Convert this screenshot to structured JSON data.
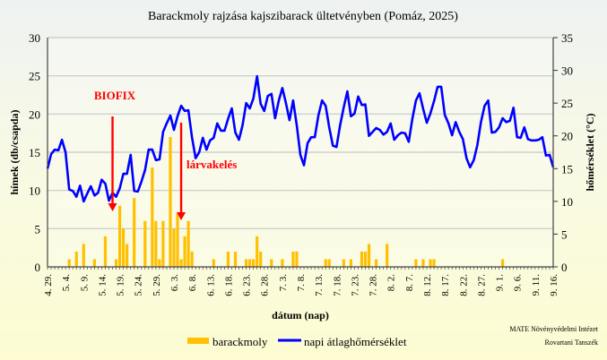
{
  "chart_data": {
    "type": "bar+line",
    "title": "Barackmoly rajzása kajszibarack ültetvényben (Pomáz, 2025)",
    "xlabel": "dátum (nap)",
    "ylabel_left": "hímek (db/csapda)",
    "ylabel_right": "hőmérséklet (°C)",
    "ylim_left": [
      0,
      30
    ],
    "yticks_left": [
      0,
      5,
      10,
      15,
      20,
      25,
      30
    ],
    "ylim_right": [
      0,
      35
    ],
    "yticks_right": [
      0,
      5,
      10,
      15,
      20,
      25,
      30,
      35
    ],
    "x_tick_labels": [
      "4. 29.",
      "5. 4.",
      "5. 9.",
      "5. 14.",
      "5. 19.",
      "5. 24.",
      "5. 29.",
      "6. 3.",
      "6. 8.",
      "6. 13.",
      "6. 18.",
      "6. 23.",
      "6. 28.",
      "7. 3.",
      "7. 8.",
      "7. 13.",
      "7. 18.",
      "7. 23.",
      "7. 28.",
      "8. 2.",
      "8. 7.",
      "8. 12.",
      "8. 17.",
      "8. 22.",
      "8. 27.",
      "9. 1.",
      "9. 6.",
      "9. 11.",
      "9. 16."
    ],
    "x_tick_every_days": 5,
    "grid": true,
    "legend_placement": "bottom",
    "series": [
      {
        "name": "barackmoly",
        "type": "bar",
        "axis": "left",
        "color": "#ffc000",
        "values": [
          0,
          0,
          0,
          0,
          0,
          0,
          1,
          0,
          2,
          0,
          3,
          0,
          0,
          1,
          0,
          0,
          4,
          0,
          0,
          1,
          8,
          5,
          3,
          0,
          9,
          0,
          0,
          6,
          0,
          13,
          6,
          1,
          6,
          0,
          17,
          5,
          7,
          1,
          4,
          6,
          2,
          0,
          0,
          0,
          0,
          0,
          1,
          0,
          0,
          0,
          2,
          0,
          2,
          0,
          0,
          1,
          1,
          1,
          4,
          2,
          0,
          0,
          1,
          0,
          0,
          1,
          0,
          0,
          2,
          2,
          0,
          0,
          0,
          0,
          0,
          0,
          0,
          1,
          1,
          0,
          0,
          0,
          1,
          0,
          1,
          0,
          0,
          2,
          2,
          3,
          0,
          1,
          0,
          0,
          3,
          0,
          0,
          0,
          0,
          0,
          0,
          0,
          1,
          0,
          1,
          0,
          1,
          1,
          0,
          0,
          0,
          0,
          0,
          0,
          0,
          0,
          0,
          0,
          0,
          0,
          0,
          0,
          0,
          0,
          0,
          0,
          1,
          0,
          0,
          0,
          0,
          0,
          0,
          0,
          0,
          0,
          0,
          0,
          0,
          0,
          0
        ]
      },
      {
        "name": "napi átlaghőmérséklet",
        "type": "line",
        "axis": "right",
        "color": "#0000ff",
        "values": [
          15.0,
          17.2,
          17.9,
          17.8,
          19.4,
          17.5,
          11.8,
          11.6,
          10.7,
          12.4,
          10.0,
          11.2,
          12.3,
          10.9,
          11.3,
          13.3,
          12.7,
          10.1,
          11.3,
          10.7,
          12.0,
          14.2,
          14.2,
          17.1,
          11.6,
          11.5,
          13.0,
          14.8,
          17.9,
          17.9,
          16.3,
          16.4,
          20.6,
          21.9,
          23.1,
          20.9,
          23.0,
          24.6,
          23.8,
          23.9,
          19.8,
          16.6,
          17.5,
          19.7,
          17.9,
          19.3,
          19.7,
          21.9,
          20.8,
          20.8,
          22.6,
          24.2,
          20.5,
          19.4,
          21.6,
          25.0,
          24.2,
          25.7,
          29.1,
          24.9,
          23.8,
          26.1,
          26.4,
          22.7,
          25.3,
          27.3,
          25.0,
          22.4,
          25.4,
          21.6,
          17.1,
          15.5,
          18.9,
          19.8,
          19.8,
          23.1,
          25.4,
          24.6,
          21.3,
          18.5,
          18.3,
          21.6,
          24.3,
          26.8,
          23.0,
          23.4,
          26.0,
          24.7,
          24.8,
          20.0,
          20.6,
          21.2,
          20.9,
          20.2,
          20.6,
          21.9,
          19.4,
          20.1,
          20.5,
          20.4,
          19.1,
          22.6,
          25.4,
          26.5,
          24.1,
          22.0,
          23.4,
          25.3,
          27.5,
          27.5,
          23.2,
          21.9,
          20.1,
          22.1,
          20.6,
          19.5,
          16.6,
          15.2,
          16.3,
          18.6,
          22.1,
          24.6,
          25.4,
          20.5,
          20.6,
          21.3,
          22.7,
          22.1,
          22.3,
          24.3,
          19.8,
          19.7,
          21.3,
          19.5,
          19.3,
          19.3,
          19.4,
          19.8,
          17.0,
          17.1,
          15.2
        ]
      }
    ],
    "annotations": [
      {
        "text": "BIOFIX",
        "day_index": 18,
        "color": "#ff0000"
      },
      {
        "text": "lárvakelés",
        "day_index": 37,
        "color": "#ff0000"
      }
    ],
    "credit": [
      "MATE Növényvédelmi Intézet",
      "Rovartani Tanszék"
    ]
  }
}
